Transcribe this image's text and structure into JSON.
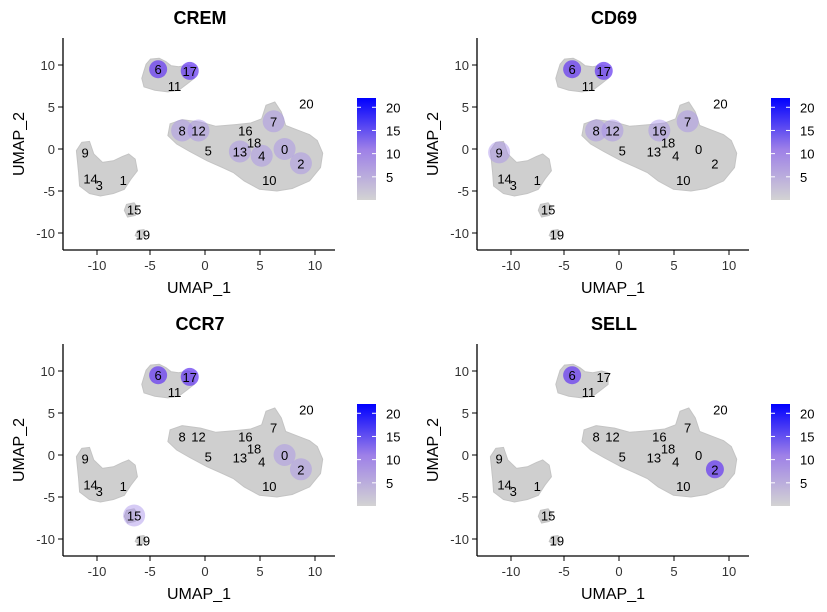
{
  "chart_data": [
    {
      "type": "scatter",
      "title": "CREM",
      "xlabel": "UMAP_1",
      "ylabel": "UMAP_2",
      "xlim": [
        -13,
        12
      ],
      "ylim": [
        -12,
        13
      ],
      "x_ticks": [
        "-10",
        "-5",
        "0",
        "5",
        "10"
      ],
      "y_ticks": [
        "10",
        "5",
        "0",
        "-5",
        "-10"
      ],
      "highlight_clusters": [
        "6",
        "17",
        "7",
        "4",
        "0",
        "2",
        "8",
        "12",
        "13"
      ],
      "legend": {
        "position": "right",
        "ticks": [
          "20",
          "15",
          "10",
          "5"
        ],
        "range": [
          0,
          22
        ]
      }
    },
    {
      "type": "scatter",
      "title": "CD69",
      "xlabel": "UMAP_1",
      "ylabel": "UMAP_2",
      "xlim": [
        -13,
        12
      ],
      "ylim": [
        -12,
        13
      ],
      "x_ticks": [
        "-10",
        "-5",
        "0",
        "5",
        "10"
      ],
      "y_ticks": [
        "10",
        "5",
        "0",
        "-5",
        "-10"
      ],
      "highlight_clusters": [
        "6",
        "17",
        "7",
        "8",
        "12",
        "9",
        "16"
      ],
      "legend": {
        "position": "right",
        "ticks": [
          "20",
          "15",
          "10",
          "5"
        ],
        "range": [
          0,
          22
        ]
      }
    },
    {
      "type": "scatter",
      "title": "CCR7",
      "xlabel": "UMAP_1",
      "ylabel": "UMAP_2",
      "xlim": [
        -13,
        12
      ],
      "ylim": [
        -12,
        13
      ],
      "x_ticks": [
        "-10",
        "-5",
        "0",
        "5",
        "10"
      ],
      "y_ticks": [
        "10",
        "5",
        "0",
        "-5",
        "-10"
      ],
      "highlight_clusters": [
        "6",
        "17",
        "15",
        "2",
        "0"
      ],
      "legend": {
        "position": "right",
        "ticks": [
          "20",
          "15",
          "10",
          "5"
        ],
        "range": [
          0,
          22
        ]
      }
    },
    {
      "type": "scatter",
      "title": "SELL",
      "xlabel": "UMAP_1",
      "ylabel": "UMAP_2",
      "xlim": [
        -13,
        12
      ],
      "ylim": [
        -12,
        13
      ],
      "x_ticks": [
        "-10",
        "-5",
        "0",
        "5",
        "10"
      ],
      "y_ticks": [
        "10",
        "5",
        "0",
        "-5",
        "-10"
      ],
      "highlight_clusters": [
        "2",
        "6"
      ],
      "legend": {
        "position": "right",
        "ticks": [
          "20",
          "15",
          "10",
          "5"
        ],
        "range": [
          0,
          22
        ]
      }
    }
  ],
  "cluster_labels": [
    {
      "label": "0",
      "x": 7.3,
      "y": 0
    },
    {
      "label": "1",
      "x": -7.5,
      "y": -3.7
    },
    {
      "label": "2",
      "x": 8.8,
      "y": -1.7
    },
    {
      "label": "3",
      "x": -9.7,
      "y": -4.3
    },
    {
      "label": "4",
      "x": 5.2,
      "y": -0.8
    },
    {
      "label": "5",
      "x": 0.3,
      "y": -0.2
    },
    {
      "label": "6",
      "x": -4.3,
      "y": 9.5
    },
    {
      "label": "7",
      "x": 6.3,
      "y": 3.3
    },
    {
      "label": "8",
      "x": -2.1,
      "y": 2.2
    },
    {
      "label": "9",
      "x": -11,
      "y": -0.4
    },
    {
      "label": "10",
      "x": 5.9,
      "y": -3.7
    },
    {
      "label": "11",
      "x": -2.8,
      "y": 7.5
    },
    {
      "label": "12",
      "x": -0.6,
      "y": 2.2
    },
    {
      "label": "13",
      "x": 3.2,
      "y": -0.3
    },
    {
      "label": "14",
      "x": -10.5,
      "y": -3.5
    },
    {
      "label": "15",
      "x": -6.5,
      "y": -7.2
    },
    {
      "label": "16",
      "x": 3.7,
      "y": 2.2
    },
    {
      "label": "17",
      "x": -1.4,
      "y": 9.3
    },
    {
      "label": "18",
      "x": 4.5,
      "y": 0.8
    },
    {
      "label": "19",
      "x": -5.7,
      "y": -10.2
    },
    {
      "label": "20",
      "x": 9.3,
      "y": 5.4
    }
  ],
  "colors": {
    "low": "#d3d3d3",
    "high": "#0000ff",
    "axis": "#000000"
  }
}
